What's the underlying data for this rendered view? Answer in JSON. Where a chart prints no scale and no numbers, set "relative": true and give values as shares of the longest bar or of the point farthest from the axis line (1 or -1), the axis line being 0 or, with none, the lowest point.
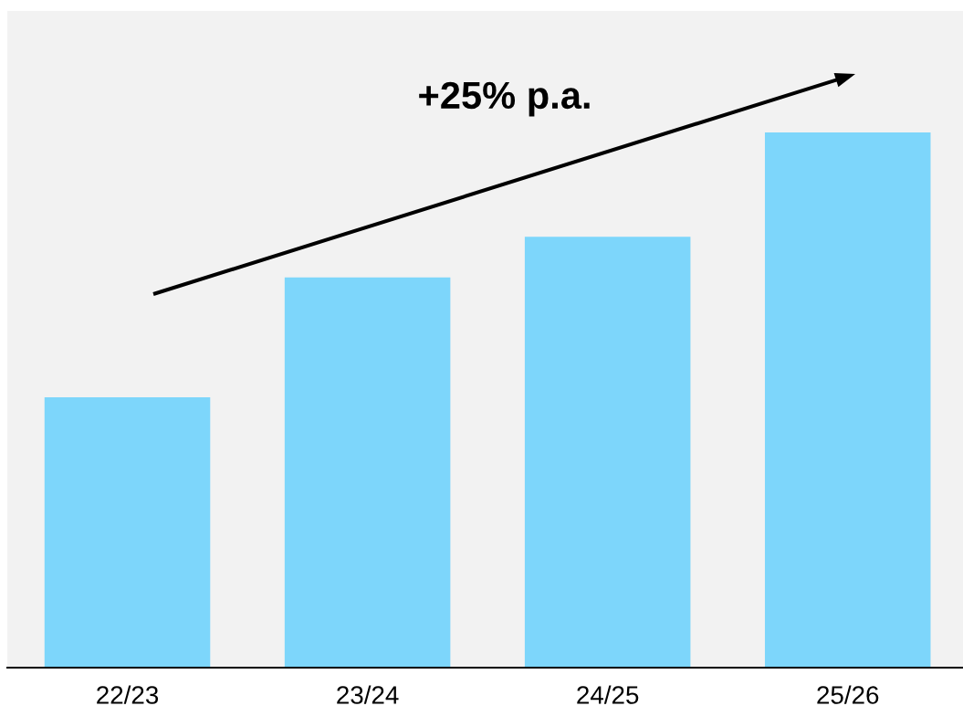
{
  "chart_data": {
    "type": "bar",
    "relative": true,
    "categories": [
      "22/23",
      "23/24",
      "24/25",
      "25/26"
    ],
    "values": [
      0.505,
      0.729,
      0.805,
      1
    ],
    "color": "#7dd6fb",
    "annotations": [
      "+25% p.a."
    ],
    "grid": false,
    "legend": false
  }
}
